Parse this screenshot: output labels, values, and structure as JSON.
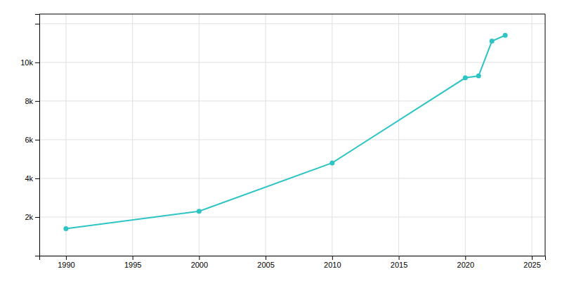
{
  "chart_data": {
    "type": "line",
    "x": [
      1990,
      2000,
      2010,
      2020,
      2021,
      2022,
      2023
    ],
    "values": [
      1400,
      2300,
      4800,
      9200,
      9300,
      11100,
      11400
    ],
    "color": "#2ec4c4",
    "marker": "circle",
    "xlim": [
      1988,
      2026
    ],
    "ylim": [
      0,
      12500
    ],
    "xticks": [
      1990,
      1995,
      2000,
      2005,
      2010,
      2015,
      2020,
      2025
    ],
    "yticks": [
      {
        "value": 0,
        "label": null
      },
      {
        "value": 2000,
        "label": "2k"
      },
      {
        "value": 4000,
        "label": "4k"
      },
      {
        "value": 6000,
        "label": "6k"
      },
      {
        "value": 8000,
        "label": "8k"
      },
      {
        "value": 10000,
        "label": "10k"
      },
      {
        "value": 12000,
        "label": null
      }
    ],
    "grid": true
  }
}
